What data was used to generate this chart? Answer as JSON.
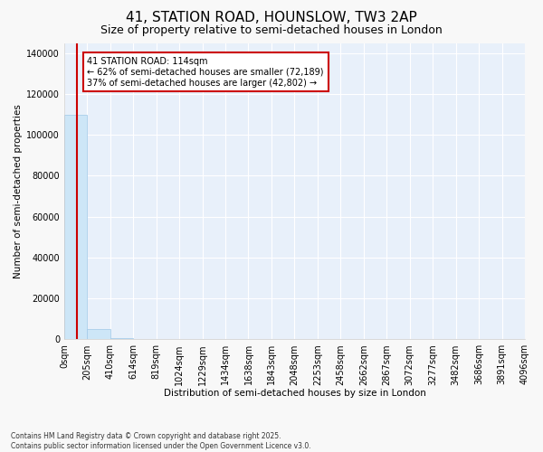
{
  "title": "41, STATION ROAD, HOUNSLOW, TW3 2AP",
  "subtitle": "Size of property relative to semi-detached houses in London",
  "xlabel": "Distribution of semi-detached houses by size in London",
  "ylabel": "Number of semi-detached properties",
  "footnote": "Contains HM Land Registry data © Crown copyright and database right 2025.\nContains public sector information licensed under the Open Government Licence v3.0.",
  "annotation_title": "41 STATION ROAD: 114sqm",
  "annotation_line1": "← 62% of semi-detached houses are smaller (72,189)",
  "annotation_line2": "37% of semi-detached houses are larger (42,802) →",
  "property_size": 114,
  "bin_edges": [
    0,
    205,
    410,
    614,
    819,
    1024,
    1229,
    1434,
    1638,
    1843,
    2048,
    2253,
    2458,
    2662,
    2867,
    3072,
    3277,
    3482,
    3686,
    3891,
    4096
  ],
  "bar_heights": [
    110000,
    5000,
    600,
    200,
    100,
    70,
    50,
    40,
    30,
    25,
    20,
    15,
    13,
    11,
    9,
    7,
    6,
    5,
    4,
    3
  ],
  "bar_color": "#cde6f7",
  "bar_edgecolor": "#9fc8e8",
  "line_color": "#cc0000",
  "annotation_box_color": "#cc0000",
  "ylim": [
    0,
    145000
  ],
  "yticks": [
    0,
    20000,
    40000,
    60000,
    80000,
    100000,
    120000,
    140000
  ],
  "plot_bg_color": "#e8f0fa",
  "fig_bg_color": "#f8f8f8",
  "grid_color": "#ffffff",
  "title_fontsize": 11,
  "subtitle_fontsize": 9,
  "annotation_fontsize": 7,
  "tick_fontsize": 7,
  "axis_label_fontsize": 7.5,
  "footnote_fontsize": 5.5
}
